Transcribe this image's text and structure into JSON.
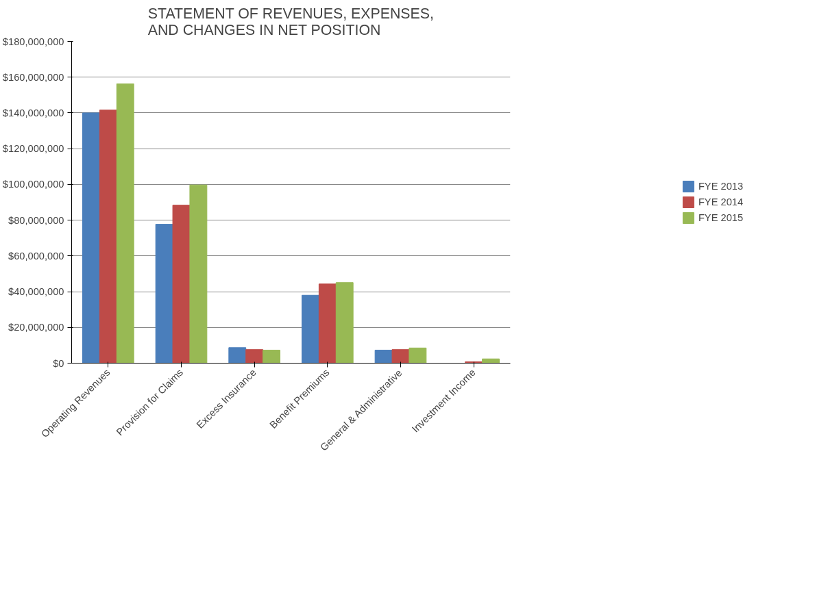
{
  "chart_data": {
    "type": "bar",
    "title": "STATEMENT OF REVENUES, EXPENSES,\nAND CHANGES IN NET POSITION",
    "categories": [
      "Operating Revenues",
      "Provision for Claims",
      "Excess Insurance",
      "Benefit Premiums",
      "General & Administrative",
      "Investment Income"
    ],
    "series": [
      {
        "name": "FYE 2013",
        "color": "#4a7ebb",
        "values": [
          140000000,
          77700000,
          8700000,
          38000000,
          7300000,
          0
        ]
      },
      {
        "name": "FYE 2014",
        "color": "#be4b48",
        "values": [
          141600000,
          88400000,
          7600000,
          44300000,
          7600000,
          800000
        ]
      },
      {
        "name": "FYE 2015",
        "color": "#98b954",
        "values": [
          156300000,
          99700000,
          7300000,
          45100000,
          8500000,
          2400000
        ]
      }
    ],
    "ylim": [
      0,
      180000000
    ],
    "yticks": [
      {
        "value": 0,
        "label": "$0"
      },
      {
        "value": 20000000,
        "label": "$20,000,000"
      },
      {
        "value": 40000000,
        "label": "$40,000,000"
      },
      {
        "value": 60000000,
        "label": "$60,000,000"
      },
      {
        "value": 80000000,
        "label": "$80,000,000"
      },
      {
        "value": 100000000,
        "label": "$100,000,000"
      },
      {
        "value": 120000000,
        "label": "$120,000,000"
      },
      {
        "value": 140000000,
        "label": "$140,000,000"
      },
      {
        "value": 160000000,
        "label": "$160,000,000"
      },
      {
        "value": 180000000,
        "label": "$180,000,000"
      }
    ],
    "grid": "y",
    "legend": "right"
  }
}
